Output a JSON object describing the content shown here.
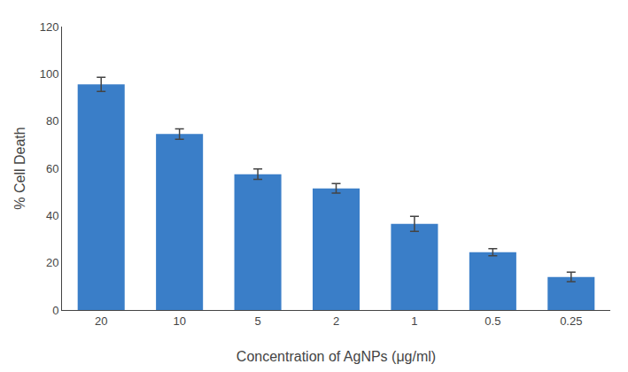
{
  "chart_data": {
    "type": "bar",
    "xlabel": "Concentration of AgNPs (μg/ml)",
    "ylabel": "% Cell Death",
    "categories": [
      "20",
      "10",
      "5",
      "2",
      "1",
      "0.5",
      "0.25"
    ],
    "values": [
      95.5,
      74.5,
      57.5,
      51.5,
      36.5,
      24.5,
      14.0
    ],
    "errors": [
      3.0,
      2.2,
      2.2,
      2.0,
      3.2,
      1.5,
      2.0
    ],
    "color": "#3A7EC8",
    "ylim": [
      0,
      120
    ],
    "yticks": [
      0,
      20,
      40,
      60,
      80,
      100,
      120
    ],
    "grid": false
  }
}
